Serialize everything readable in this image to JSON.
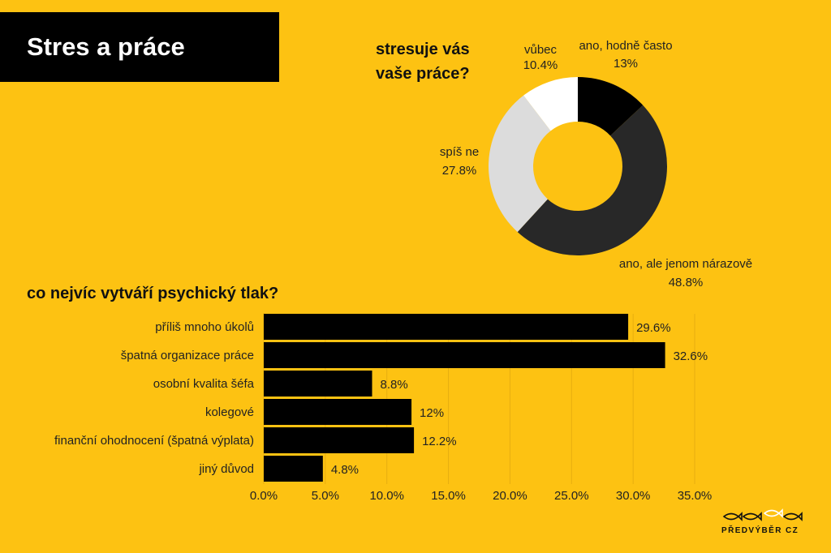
{
  "title": "Stres a práce",
  "logo_text": "PŘEDVÝBĚR CZ",
  "chart_data": [
    {
      "type": "pie",
      "title": "stresuje vás vaše práce?",
      "title_lines": [
        "stresuje vás",
        "vaše práce?"
      ],
      "categories": [
        "ano, hodně často",
        "ano, ale jenom nárazově",
        "spíš ne",
        "vůbec"
      ],
      "values": [
        13,
        48.8,
        27.8,
        10.4
      ],
      "value_labels": [
        "13%",
        "48.8%",
        "27.8%",
        "10.4%"
      ],
      "colors": [
        "#000000",
        "#282828",
        "#DCDCDC",
        "#FFFFFF"
      ]
    },
    {
      "type": "bar",
      "orientation": "horizontal",
      "title": "co nejvíc vytváří psychický tlak?",
      "categories": [
        "příliš mnoho úkolů",
        "špatná organizace práce",
        "osobní kvalita šéfa",
        "kolegové",
        "finanční ohodnocení (špatná výplata)",
        "jiný důvod"
      ],
      "values": [
        29.6,
        32.6,
        8.8,
        12,
        12.2,
        4.8
      ],
      "value_labels": [
        "29.6%",
        "32.6%",
        "8.8%",
        "12%",
        "12.2%",
        "4.8%"
      ],
      "xlim": [
        0,
        35
      ],
      "xticks": [
        0,
        5,
        10,
        15,
        20,
        25,
        30,
        35
      ],
      "xtick_labels": [
        "0.0%",
        "5.0%",
        "10.0%",
        "15.0%",
        "20.0%",
        "25.0%",
        "30.0%",
        "35.0%"
      ],
      "bar_color": "#000000",
      "grid": true
    }
  ]
}
